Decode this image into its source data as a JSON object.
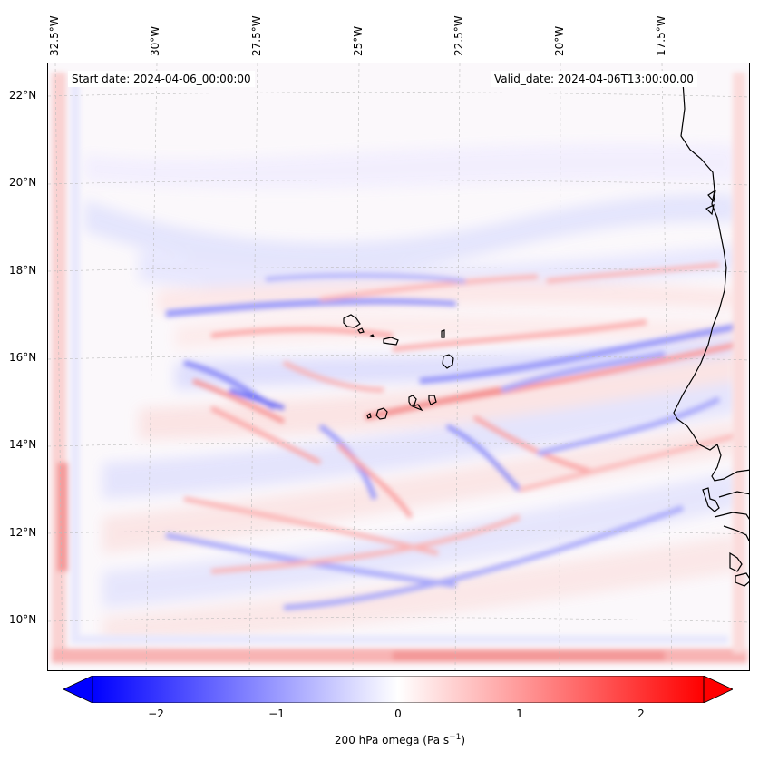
{
  "map": {
    "start_date": "Start date: 2024-04-06_00:00:00",
    "valid_date": "Valid_date: 2024-04-06T13:00:00.00",
    "lon_ticks": [
      "32.5°W",
      "30°W",
      "27.5°W",
      "25°W",
      "22.5°W",
      "20°W",
      "17.5°W"
    ],
    "lat_ticks": [
      "22°N",
      "20°N",
      "18°N",
      "16°N",
      "14°N",
      "12°N",
      "10°N"
    ],
    "field": "200 hPa omega",
    "colormap": "bwr",
    "colors": {
      "negative": "#0000ff",
      "zero": "#ffffff",
      "positive": "#ff0000",
      "coastline": "#000000",
      "gridline": "#bbbbbb"
    }
  },
  "colorbar": {
    "ticks": [
      "−2",
      "−1",
      "0",
      "1",
      "2"
    ],
    "tick_values": [
      -2,
      -1,
      0,
      1,
      2
    ],
    "range": [
      -2.5,
      2.5
    ],
    "extend": "both",
    "label_main": "200 hPa omega (Pa s",
    "label_sup": "−1",
    "label_end": ")"
  }
}
